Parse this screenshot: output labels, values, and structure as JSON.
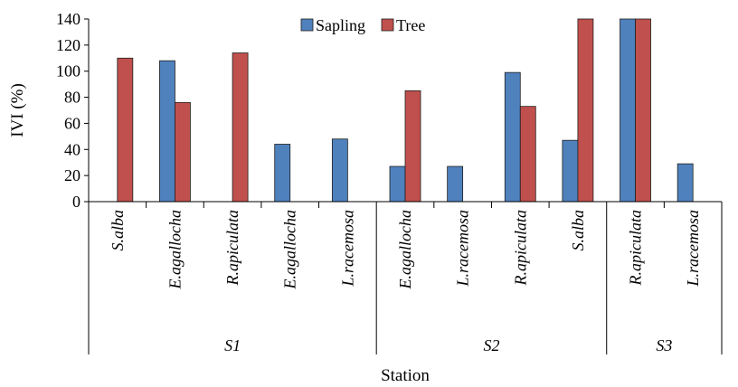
{
  "chart_data": {
    "type": "bar",
    "ylabel": "IVI (%)",
    "xlabel": "Station",
    "ylim": [
      0,
      140
    ],
    "yticks": [
      0,
      20,
      40,
      60,
      80,
      100,
      120,
      140
    ],
    "legend_position": "top-center",
    "categories": [
      "S.alba",
      "E.agallocha",
      "R.apiculata",
      "E.agallocha",
      "L.racemosa",
      "E.agallocha",
      "L.racemosa",
      "R.apiculata",
      "S.alba",
      "R.apiculata",
      "L.racemosa"
    ],
    "groups": [
      {
        "label": "S1",
        "count": 5
      },
      {
        "label": "S2",
        "count": 4
      },
      {
        "label": "S3",
        "count": 2
      }
    ],
    "series": [
      {
        "name": "Sapling",
        "color": "#4f81bd",
        "values": [
          null,
          108,
          null,
          44,
          48,
          27,
          27,
          99,
          47,
          140,
          29
        ]
      },
      {
        "name": "Tree",
        "color": "#c0504d",
        "values": [
          110,
          76,
          114,
          null,
          null,
          85,
          null,
          73,
          140,
          140,
          null
        ]
      }
    ]
  }
}
